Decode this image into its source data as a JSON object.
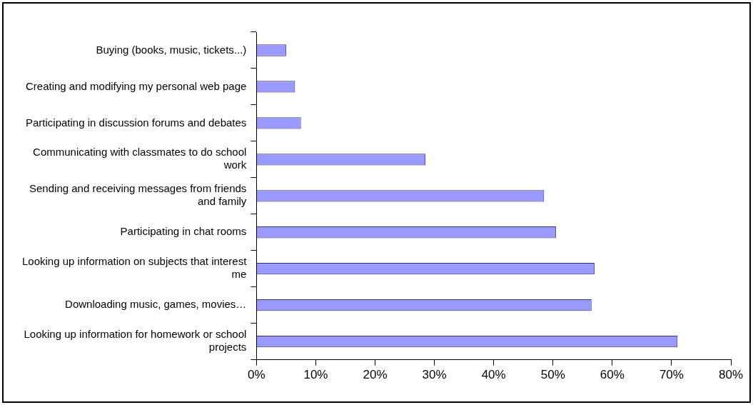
{
  "chart_data": {
    "type": "bar",
    "orientation": "horizontal",
    "categories": [
      "Buying (books, music, tickets...)",
      "Creating and modifying my personal web page",
      "Participating in discussion forums and debates",
      "Communicating with classmates to do school work",
      "Sending and receiving messages from friends and family",
      "Participating in chat rooms",
      "Looking up information on subjects that interest me",
      "Downloading music, games, movies…",
      "Looking up information for homework or school projects"
    ],
    "values": [
      5,
      6.5,
      7.5,
      28.5,
      48.5,
      50.5,
      57,
      56.5,
      71
    ],
    "color": "#9999ff",
    "xlim": [
      0,
      80
    ],
    "xticks": [
      {
        "value": 0,
        "label": "0%"
      },
      {
        "value": 10,
        "label": "10%"
      },
      {
        "value": 20,
        "label": "20%"
      },
      {
        "value": 30,
        "label": "30%"
      },
      {
        "value": 40,
        "label": "40%"
      },
      {
        "value": 50,
        "label": "50%"
      },
      {
        "value": 60,
        "label": "60%"
      },
      {
        "value": 70,
        "label": "70%"
      },
      {
        "value": 80,
        "label": "80%"
      }
    ],
    "grid": false,
    "legend": false
  }
}
